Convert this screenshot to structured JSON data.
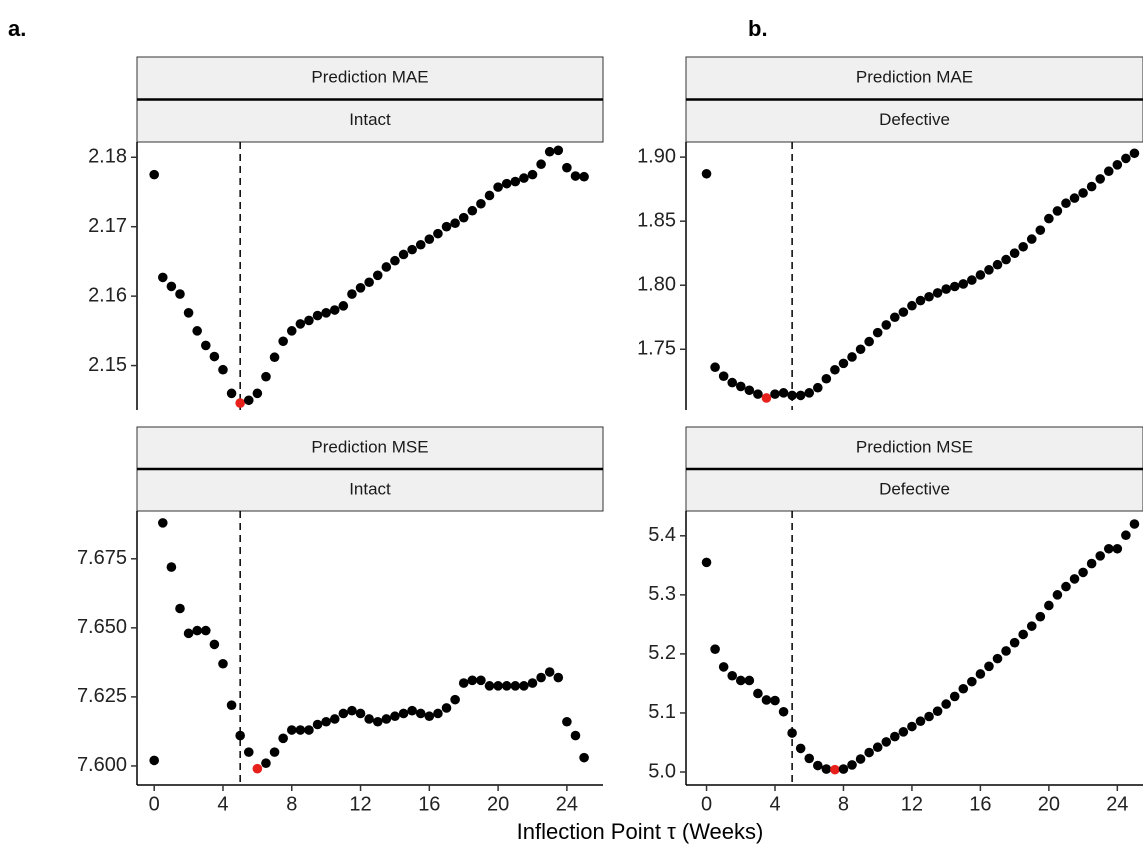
{
  "panel_labels": [
    "a.",
    "b."
  ],
  "xlabel": "Inflection Point τ (Weeks)",
  "chart_data": [
    {
      "type": "scatter",
      "facet_labels": [
        "Prediction MAE",
        "Intact"
      ],
      "x": [
        0,
        0.5,
        1,
        1.5,
        2,
        2.5,
        3,
        3.5,
        4,
        4.5,
        5,
        5.5,
        6,
        6.5,
        7,
        7.5,
        8,
        8.5,
        9,
        9.5,
        10,
        10.5,
        11,
        11.5,
        12,
        12.5,
        13,
        13.5,
        14,
        14.5,
        15,
        15.5,
        16,
        16.5,
        17,
        17.5,
        18,
        18.5,
        19,
        19.5,
        20,
        20.5,
        21,
        21.5,
        22,
        22.5,
        23,
        23.5,
        24,
        24.5,
        25
      ],
      "values": [
        2.1775,
        2.1627,
        2.1614,
        2.1603,
        2.1576,
        2.155,
        2.1529,
        2.1513,
        2.1494,
        2.146,
        2.1446,
        2.145,
        2.146,
        2.1484,
        2.1512,
        2.1535,
        2.155,
        2.156,
        2.1565,
        2.1572,
        2.1576,
        2.158,
        2.1586,
        2.1603,
        2.1612,
        2.162,
        2.163,
        2.1642,
        2.1651,
        2.166,
        2.1667,
        2.1674,
        2.1682,
        2.169,
        2.17,
        2.1705,
        2.1713,
        2.1723,
        2.1733,
        2.1745,
        2.1757,
        2.1762,
        2.1765,
        2.177,
        2.1775,
        2.179,
        2.1808,
        2.181,
        2.1785,
        2.1773,
        2.1772
      ],
      "color": "#000000",
      "highlight_index": 10,
      "highlight_color": "#e8201c",
      "vline": 5,
      "xlim": [
        -1,
        26.1
      ],
      "ylim": [
        2.1436,
        2.1822
      ],
      "yticks": [
        2.15,
        2.16,
        2.17,
        2.18
      ]
    },
    {
      "type": "scatter",
      "facet_labels": [
        "Prediction MAE",
        "Defective"
      ],
      "x": [
        0,
        0.5,
        1,
        1.5,
        2,
        2.5,
        3,
        3.5,
        4,
        4.5,
        5,
        5.5,
        6,
        6.5,
        7,
        7.5,
        8,
        8.5,
        9,
        9.5,
        10,
        10.5,
        11,
        11.5,
        12,
        12.5,
        13,
        13.5,
        14,
        14.5,
        15,
        15.5,
        16,
        16.5,
        17,
        17.5,
        18,
        18.5,
        19,
        19.5,
        20,
        20.5,
        21,
        21.5,
        22,
        22.5,
        23,
        23.5,
        24,
        24.5,
        25
      ],
      "values": [
        1.887,
        1.736,
        1.729,
        1.724,
        1.721,
        1.718,
        1.715,
        1.712,
        1.715,
        1.716,
        1.714,
        1.714,
        1.716,
        1.72,
        1.727,
        1.734,
        1.739,
        1.744,
        1.75,
        1.756,
        1.763,
        1.769,
        1.775,
        1.779,
        1.784,
        1.788,
        1.791,
        1.794,
        1.797,
        1.799,
        1.801,
        1.804,
        1.808,
        1.812,
        1.816,
        1.82,
        1.825,
        1.83,
        1.836,
        1.843,
        1.852,
        1.858,
        1.864,
        1.868,
        1.872,
        1.877,
        1.883,
        1.889,
        1.894,
        1.899,
        1.903
      ],
      "color": "#000000",
      "highlight_index": 7,
      "highlight_color": "#e8201c",
      "vline": 5,
      "xlim": [
        -1.2,
        25.5
      ],
      "ylim": [
        1.7026,
        1.9118
      ],
      "yticks": [
        1.75,
        {
          "value": 1.8,
          "label": "1.80"
        },
        1.85,
        {
          "value": 1.9,
          "label": "1.90"
        }
      ]
    },
    {
      "type": "scatter",
      "facet_labels": [
        "Prediction MSE",
        "Intact"
      ],
      "x": [
        0,
        0.5,
        1,
        1.5,
        2,
        2.5,
        3,
        3.5,
        4,
        4.5,
        5,
        5.5,
        6,
        6.5,
        7,
        7.5,
        8,
        8.5,
        9,
        9.5,
        10,
        10.5,
        11,
        11.5,
        12,
        12.5,
        13,
        13.5,
        14,
        14.5,
        15,
        15.5,
        16,
        16.5,
        17,
        17.5,
        18,
        18.5,
        19,
        19.5,
        20,
        20.5,
        21,
        21.5,
        22,
        22.5,
        23,
        23.5,
        24,
        24.5,
        25
      ],
      "values": [
        7.602,
        7.688,
        7.672,
        7.657,
        7.648,
        7.649,
        7.649,
        7.644,
        7.637,
        7.622,
        7.611,
        7.605,
        7.599,
        7.601,
        7.605,
        7.61,
        7.613,
        7.613,
        7.613,
        7.615,
        7.616,
        7.617,
        7.619,
        7.62,
        7.619,
        7.617,
        7.616,
        7.617,
        7.618,
        7.619,
        7.62,
        7.619,
        7.618,
        7.619,
        7.621,
        7.624,
        7.63,
        7.631,
        7.631,
        7.629,
        7.629,
        7.629,
        7.629,
        7.629,
        7.63,
        7.632,
        7.634,
        7.632,
        7.616,
        7.611,
        7.603
      ],
      "color": "#000000",
      "highlight_index": 12,
      "highlight_color": "#e8201c",
      "vline": 5,
      "xlim": [
        -1,
        26.1
      ],
      "xticks": [
        0,
        4,
        8,
        12,
        16,
        20,
        24
      ],
      "ylim": [
        7.5931,
        7.6923
      ],
      "yticks": [
        {
          "value": 7.6,
          "label": "7.600"
        },
        7.625,
        {
          "value": 7.65,
          "label": "7.650"
        },
        7.675
      ]
    },
    {
      "type": "scatter",
      "facet_labels": [
        "Prediction MSE",
        "Defective"
      ],
      "x": [
        0,
        0.5,
        1,
        1.5,
        2,
        2.5,
        3,
        3.5,
        4,
        4.5,
        5,
        5.5,
        6,
        6.5,
        7,
        7.5,
        8,
        8.5,
        9,
        9.5,
        10,
        10.5,
        11,
        11.5,
        12,
        12.5,
        13,
        13.5,
        14,
        14.5,
        15,
        15.5,
        16,
        16.5,
        17,
        17.5,
        18,
        18.5,
        19,
        19.5,
        20,
        20.5,
        21,
        21.5,
        22,
        22.5,
        23,
        23.5,
        24,
        24.5,
        25
      ],
      "values": [
        5.355,
        5.208,
        5.178,
        5.163,
        5.155,
        5.155,
        5.133,
        5.122,
        5.121,
        5.102,
        5.066,
        5.04,
        5.023,
        5.011,
        5.005,
        5.004,
        5.005,
        5.012,
        5.022,
        5.033,
        5.042,
        5.051,
        5.06,
        5.068,
        5.077,
        5.086,
        5.094,
        5.103,
        5.115,
        5.128,
        5.141,
        5.153,
        5.166,
        5.179,
        5.192,
        5.205,
        5.219,
        5.233,
        5.247,
        5.263,
        5.282,
        5.3,
        5.314,
        5.327,
        5.338,
        5.353,
        5.366,
        5.378,
        5.378,
        5.401,
        5.42
      ],
      "color": "#000000",
      "highlight_index": 15,
      "highlight_color": "#e8201c",
      "vline": 5,
      "xlim": [
        -1.2,
        25.5
      ],
      "xticks": [
        0,
        4,
        8,
        12,
        16,
        20,
        24
      ],
      "ylim": [
        4.978,
        5.442
      ],
      "yticks": [
        {
          "value": 5,
          "label": "5.0"
        },
        5.1,
        5.2,
        5.3,
        5.4
      ]
    }
  ]
}
